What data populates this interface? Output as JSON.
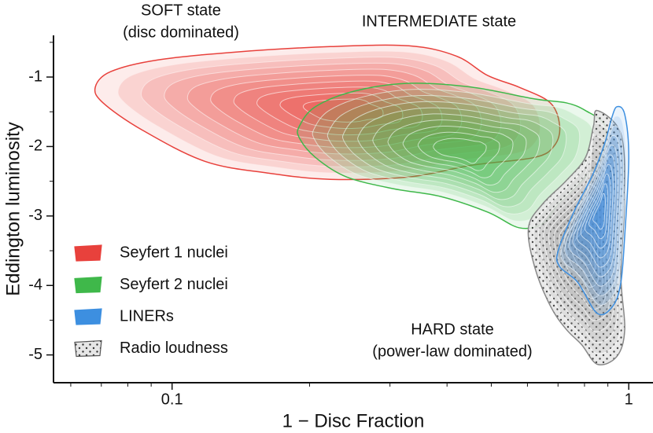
{
  "chart_data": {
    "type": "contour",
    "x_label": "1 − Disc Fraction",
    "y_label": "Eddington luminosity",
    "xscale": "log",
    "xlim": [
      0.055,
      1.13
    ],
    "ylim": [
      -5.4,
      -0.4
    ],
    "xticks": [
      0.1,
      1
    ],
    "xminorticks": [
      0.06,
      0.07,
      0.08,
      0.09,
      0.2,
      0.3,
      0.4,
      0.5,
      0.6,
      0.7,
      0.8,
      0.9
    ],
    "yticks": [
      -5,
      -4,
      -3,
      -2,
      -1
    ],
    "yminorticks": [
      -4.5,
      -3.5,
      -2.5,
      -1.5,
      -0.5
    ],
    "legend": "lower left",
    "annotations": [
      {
        "lines": [
          "SOFT state",
          "(disc dominated)"
        ]
      },
      {
        "lines": [
          "INTERMEDIATE state"
        ]
      },
      {
        "lines": [
          "HARD state",
          "(power-law dominated)"
        ]
      }
    ],
    "series": [
      {
        "name": "Seyfert 1 nuclei",
        "color": "#e8413c",
        "x": [
          0.0679,
          0.0734,
          0.0931,
          0.138,
          0.222,
          0.33,
          0.419,
          0.491,
          0.575,
          0.673,
          0.706,
          0.687,
          0.622,
          0.453,
          0.33,
          0.222,
          0.162,
          0.118,
          0.0861,
          0.0706
        ],
        "y": [
          -1.146,
          -0.921,
          -0.753,
          -0.64,
          -0.562,
          -0.551,
          -0.697,
          -0.978,
          -1.146,
          -1.371,
          -1.708,
          -1.989,
          -2.157,
          -2.27,
          -2.438,
          -2.472,
          -2.382,
          -2.213,
          -1.764,
          -1.371
        ]
      },
      {
        "name": "Seyfert 2 nuclei",
        "color": "#3fb84a",
        "x": [
          0.19,
          0.206,
          0.251,
          0.33,
          0.453,
          0.622,
          0.729,
          0.804,
          0.888,
          0.871,
          0.789,
          0.7,
          0.647,
          0.575,
          0.491,
          0.387,
          0.305,
          0.241,
          0.206,
          0.19
        ],
        "y": [
          -1.708,
          -1.427,
          -1.202,
          -1.09,
          -1.146,
          -1.315,
          -1.371,
          -1.483,
          -1.708,
          -2.157,
          -2.494,
          -2.831,
          -3.112,
          -3.169,
          -2.944,
          -2.719,
          -2.607,
          -2.438,
          -2.157,
          -1.876
        ]
      },
      {
        "name": "Radio loudness",
        "color": "#9a9a9a",
        "hatch": "dots",
        "x": [
          0.854,
          0.961,
          0.98,
          0.961,
          0.98,
          0.942,
          0.854,
          0.789,
          0.729,
          0.673,
          0.622,
          0.603,
          0.647,
          0.729,
          0.804,
          0.837
        ],
        "y": [
          -1.483,
          -1.82,
          -2.719,
          -3.843,
          -4.629,
          -5.022,
          -5.135,
          -4.854,
          -4.629,
          -4.292,
          -3.73,
          -3.169,
          -2.831,
          -2.494,
          -2.157,
          -1.708
        ]
      },
      {
        "name": "LINERs",
        "color": "#3d8fe0",
        "x": [
          0.942,
          0.98,
          1.0,
          0.98,
          0.961,
          0.924,
          0.854,
          0.773,
          0.706,
          0.7,
          0.758,
          0.837,
          0.888,
          0.917
        ],
        "y": [
          -1.427,
          -1.539,
          -2.157,
          -3.281,
          -3.955,
          -4.292,
          -4.404,
          -3.955,
          -3.73,
          -3.506,
          -2.944,
          -2.382,
          -1.933,
          -1.596
        ]
      }
    ],
    "legend_order": [
      0,
      1,
      3,
      2
    ]
  }
}
